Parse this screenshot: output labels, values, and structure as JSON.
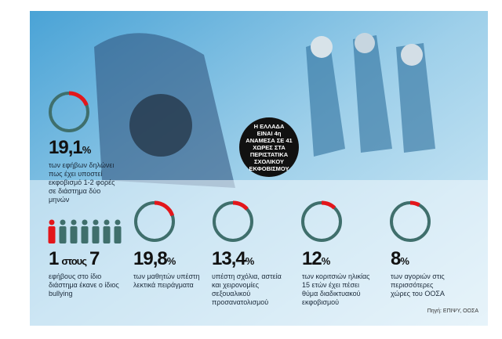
{
  "headline_circle": "Η ΕΛΛΑΔΑ ΕΙΝΑΙ 4η ΑΝΑΜΕΣΑ ΣΕ 41 ΧΩΡΕΣ ΣΤΑ ΠΕΡΙΣΤΑΤΙΚΑ ΣΧΟΛΙΚΟΥ ΕΚΦΟΒΙΣΜΟΥ",
  "stats": [
    {
      "value": 19.1,
      "label": "19,1",
      "unit": "%",
      "text": "των εφήβων δηλώνει πως έχει υποστεί εκφοβισμό 1-2 φορές σε διάστημα δύο μηνών"
    },
    {
      "value": 19.8,
      "label": "19,8",
      "unit": "%",
      "text": "των μαθητών υπέστη λεκτικά πειράγματα"
    },
    {
      "value": 13.4,
      "label": "13,4",
      "unit": "%",
      "text": "υπέστη σχόλια, αστεία και χειρονομίες σεξουαλικού προσανατολισμού"
    },
    {
      "value": 12,
      "label": "12",
      "unit": "%",
      "text": "των κοριτσιών ηλικίας 15 ετών έχει πέσει θύμα διαδικτυακού εκφοβισμού"
    },
    {
      "value": 8,
      "label": "8",
      "unit": "%",
      "text": "των αγοριών στις περισσότερες χώρες του ΟΟΣΑ"
    }
  ],
  "ratio": {
    "part": 1,
    "word": "στους",
    "total": 7,
    "text": "εφήβους στο ίδιο διάστημα έκανε ο ίδιος bullying"
  },
  "source": "Πηγή: ΕΠΙΨΥ, ΟΟΣΑ"
}
